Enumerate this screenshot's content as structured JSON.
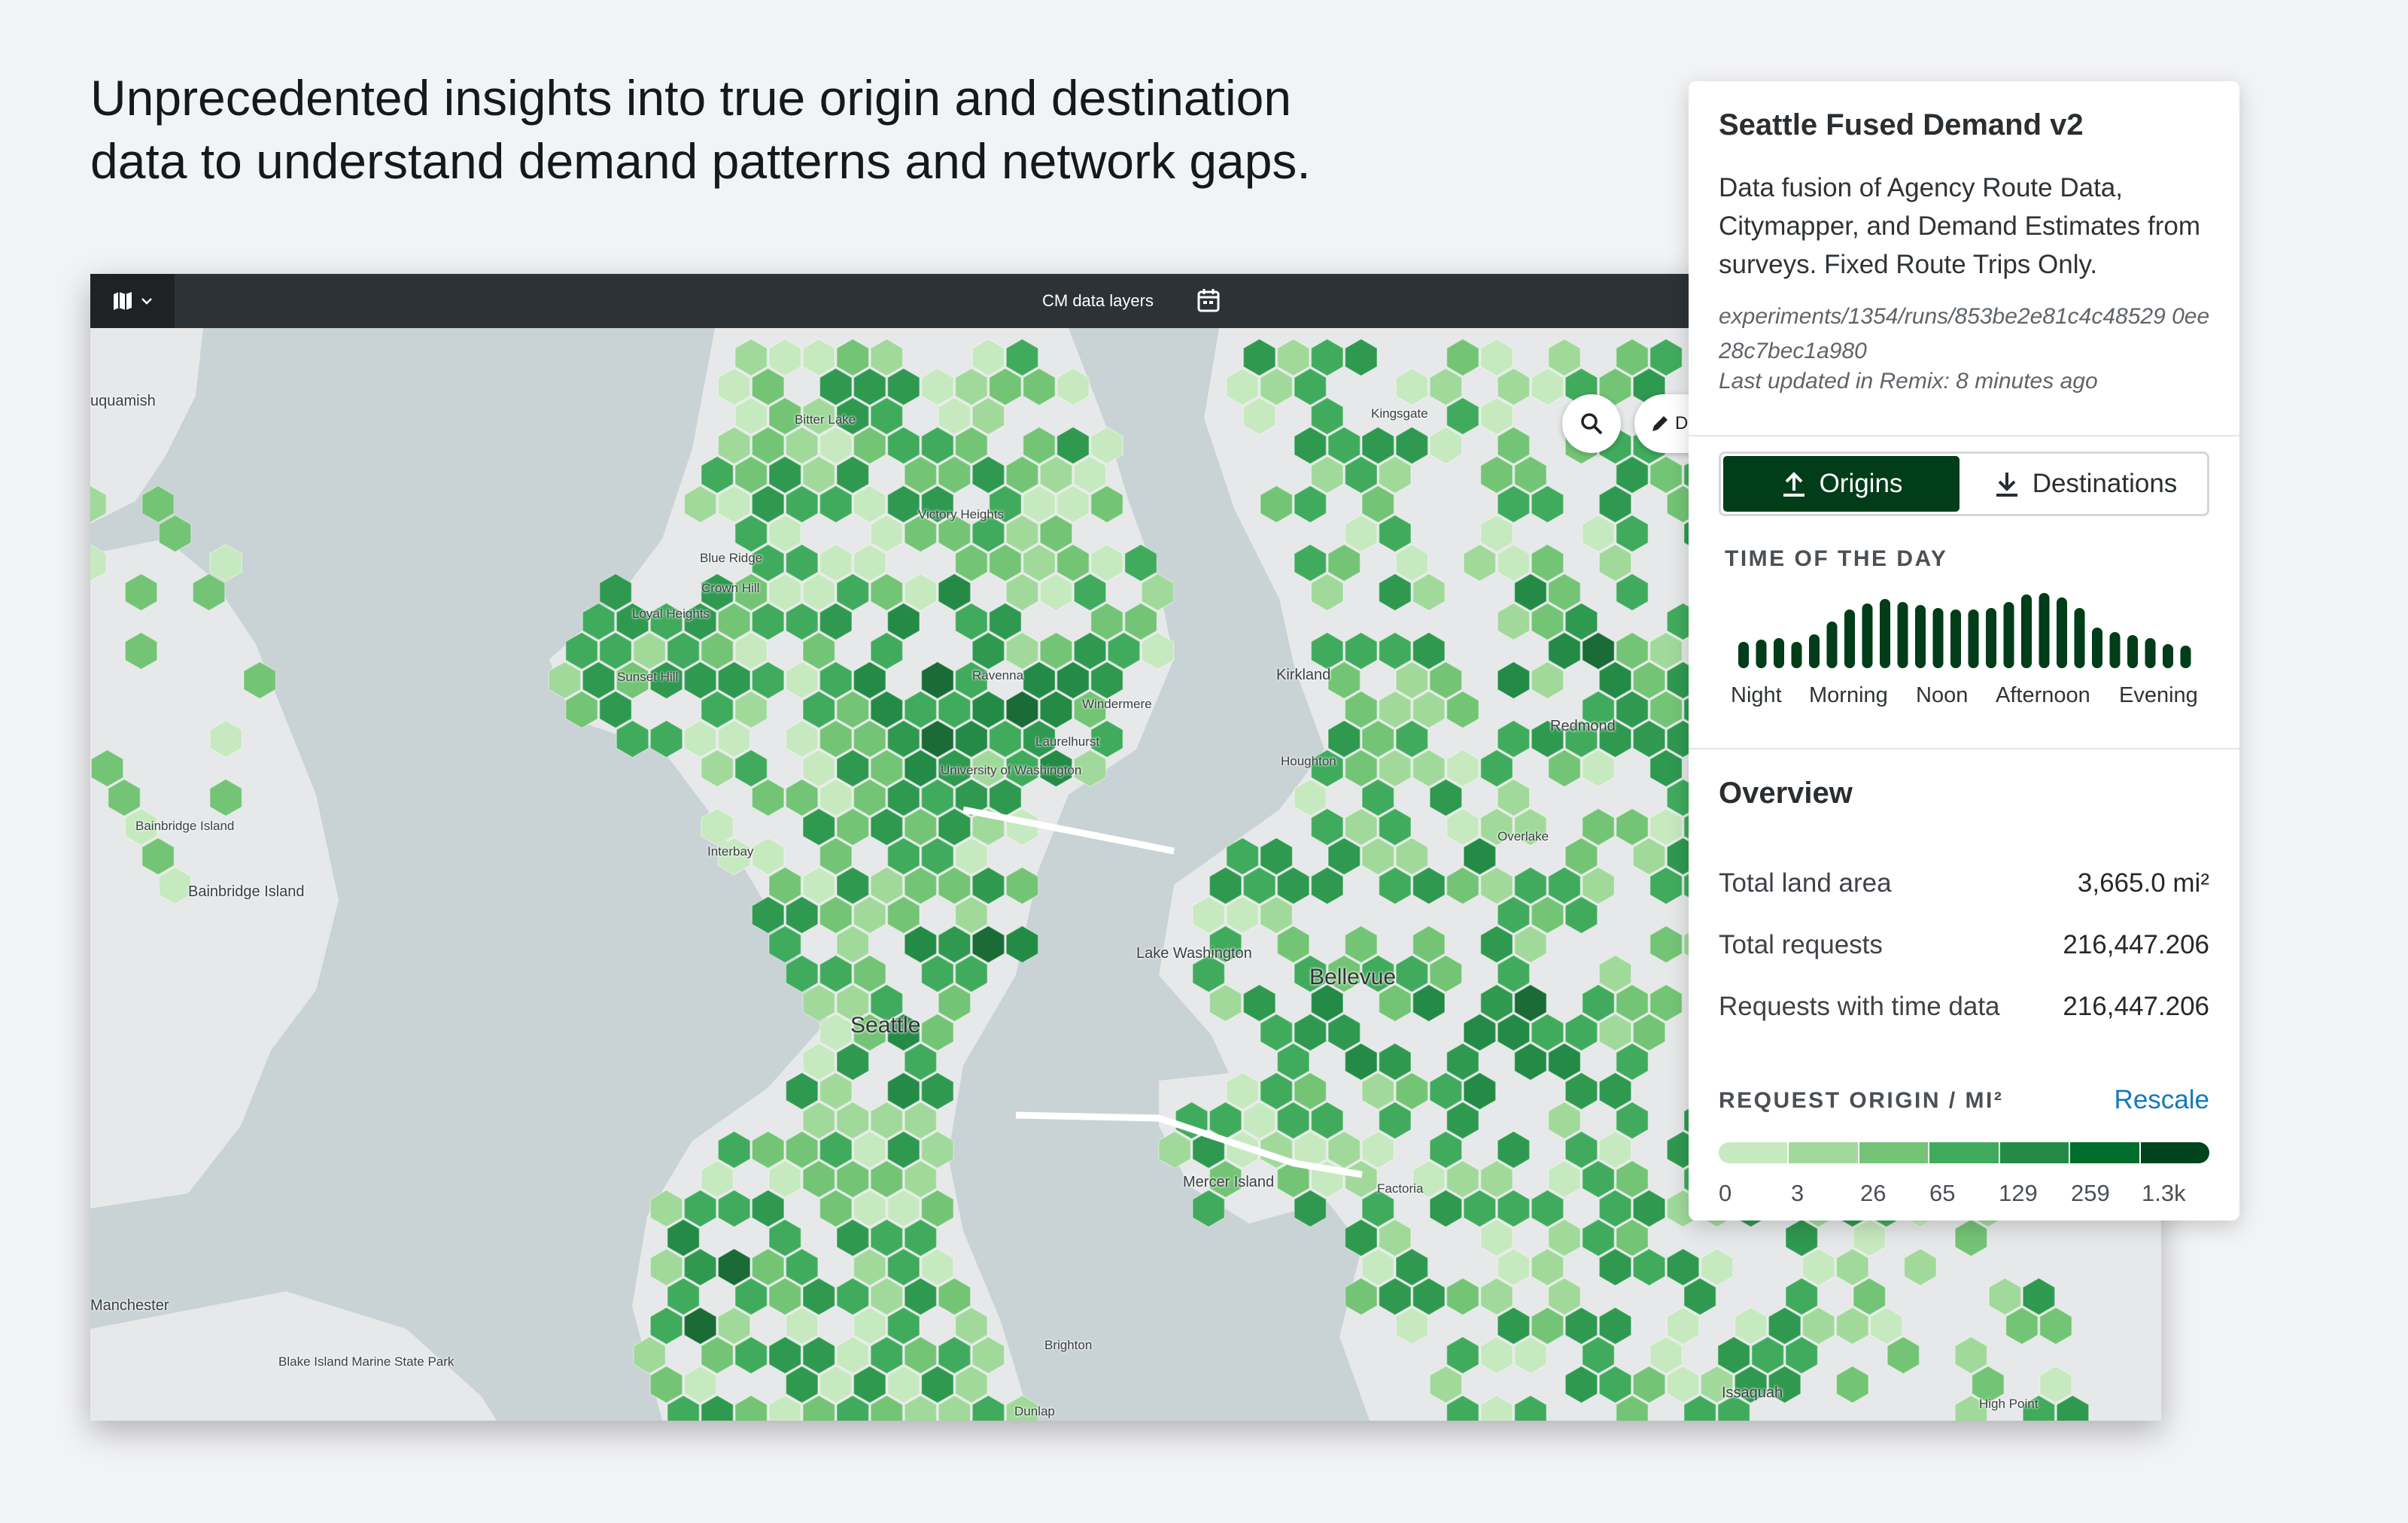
{
  "headline": {
    "line1": "Unprecedented insights into true origin and destination",
    "line2": "data to understand demand patterns and network gaps."
  },
  "toolbar": {
    "title": "CM data layers",
    "map_menu_icon": "map-icon",
    "calendar_icon": "calendar-icon"
  },
  "map": {
    "draw_label": "D",
    "labels": [
      {
        "text": "uquamish",
        "cls": ""
      },
      {
        "text": "Bitter Lake",
        "cls": "small"
      },
      {
        "text": "Kingsgate",
        "cls": "small"
      },
      {
        "text": "Victory Heights",
        "cls": "small"
      },
      {
        "text": "Blue Ridge",
        "cls": "small"
      },
      {
        "text": "Crown Hill",
        "cls": "small"
      },
      {
        "text": "Loyal Heights",
        "cls": "small"
      },
      {
        "text": "Sunset Hill",
        "cls": "small"
      },
      {
        "text": "Ravenna",
        "cls": "small"
      },
      {
        "text": "Windermere",
        "cls": "small"
      },
      {
        "text": "Kirkland",
        "cls": ""
      },
      {
        "text": "Redmond",
        "cls": ""
      },
      {
        "text": "Laurelhurst",
        "cls": "small"
      },
      {
        "text": "Houghton",
        "cls": "small"
      },
      {
        "text": "University of Washington",
        "cls": "small"
      },
      {
        "text": "Bainbridge Island",
        "cls": "small"
      },
      {
        "text": "Interbay",
        "cls": "small"
      },
      {
        "text": "Overlake",
        "cls": "small"
      },
      {
        "text": "Bainbridge Island",
        "cls": ""
      },
      {
        "text": "Lake Washington",
        "cls": ""
      },
      {
        "text": "Bellevue",
        "cls": "city"
      },
      {
        "text": "Seattle",
        "cls": "city"
      },
      {
        "text": "Mercer Island",
        "cls": ""
      },
      {
        "text": "Factoria",
        "cls": "small"
      },
      {
        "text": "Manchester",
        "cls": ""
      },
      {
        "text": "Blake Island Marine State Park",
        "cls": "small"
      },
      {
        "text": "Brighton",
        "cls": "small"
      },
      {
        "text": "Issaquah",
        "cls": ""
      },
      {
        "text": "High Point",
        "cls": "small"
      },
      {
        "text": "Dunlap",
        "cls": "small"
      }
    ]
  },
  "panel": {
    "title": "Seattle Fused Demand v2",
    "description": "Data fusion of Agency Route Data, Citymapper, and Demand Estimates from surveys. Fixed Route Trips Only.",
    "path": "experiments/1354/runs/853be2e81c4c48529 0ee28c7bec1a980",
    "updated": "Last updated in Remix: 8 minutes ago",
    "toggle": {
      "origins": "Origins",
      "destinations": "Destinations",
      "origins_icon": "upload-icon",
      "destinations_icon": "download-icon",
      "active": "Origins"
    },
    "time_of_day": {
      "label": "TIME OF THE DAY",
      "bars": [
        0.35,
        0.38,
        0.4,
        0.35,
        0.45,
        0.62,
        0.78,
        0.86,
        0.92,
        0.88,
        0.84,
        0.8,
        0.78,
        0.78,
        0.8,
        0.88,
        0.98,
        1.0,
        0.94,
        0.8,
        0.54,
        0.48,
        0.44,
        0.4,
        0.32,
        0.3
      ],
      "bar_color": "#003d18",
      "axis_labels": [
        "Night",
        "Morning",
        "Noon",
        "Afternoon",
        "Evening"
      ]
    },
    "overview": {
      "title": "Overview",
      "rows": [
        {
          "key": "Total land area",
          "value": "3,665.0 mi²"
        },
        {
          "key": "Total requests",
          "value": "216,447.206"
        },
        {
          "key": "Requests with time data",
          "value": "216,447.206"
        }
      ]
    },
    "legend": {
      "label": "REQUEST ORIGIN / MI²",
      "rescale": "Rescale",
      "colors": [
        "#c7e9c0",
        "#a1d99b",
        "#74c476",
        "#41ab5d",
        "#238b45",
        "#006d2c",
        "#00441b"
      ],
      "ticks": [
        "0",
        "3",
        "26",
        "65",
        "129",
        "259",
        "1.3k"
      ]
    }
  },
  "colors": {
    "water": "#c9d2d5",
    "land": "#e6e8e9",
    "hex_palette": [
      "#c7e9c0",
      "#a1d99b",
      "#74c476",
      "#41ab5d",
      "#2f9950",
      "#238b45",
      "#1a6b36"
    ]
  }
}
